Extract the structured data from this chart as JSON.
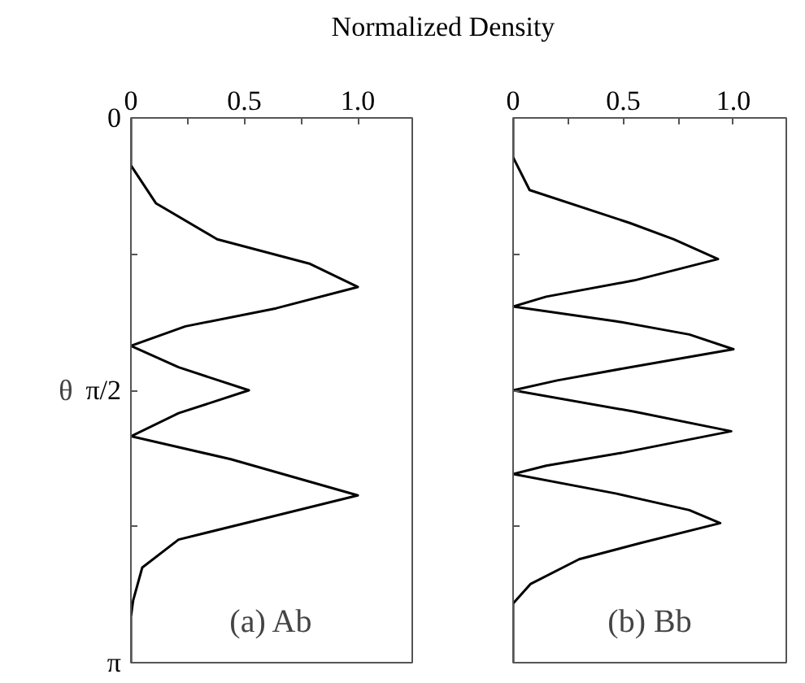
{
  "chart_data": [
    {
      "type": "line",
      "title": "Normalized Density",
      "ylabel": "θ",
      "annotations": [
        "(a) Ab"
      ],
      "grid": false,
      "xlim": [
        0,
        1.24
      ],
      "ylim": [
        3.1416,
        0
      ],
      "xticks": [
        0,
        {
          "value": 0.25,
          "label": null
        },
        0.5,
        {
          "value": 0.75,
          "label": null
        },
        {
          "value": 1,
          "label": "1.0"
        }
      ],
      "yticks": [
        0,
        {
          "value": 0.785,
          "label": null
        },
        {
          "value": 1.571,
          "label": "π/2"
        },
        {
          "value": 2.356,
          "label": null
        },
        {
          "value": 3.1416,
          "label": "π"
        }
      ],
      "series": [
        {
          "color": "#000000",
          "x": [
            0,
            0,
            0.11,
            0.38,
            0.79,
            1.0,
            0.64,
            0.24,
            0.0,
            0.21,
            0.52,
            0.21,
            0.0,
            0.44,
            1.0,
            0.59,
            0.21,
            0.05,
            0.01,
            0,
            0
          ],
          "values": [
            0,
            0.274,
            0.492,
            0.7,
            0.842,
            0.975,
            1.098,
            1.202,
            1.315,
            1.438,
            1.571,
            1.703,
            1.836,
            1.968,
            2.177,
            2.309,
            2.432,
            2.593,
            2.782,
            2.877,
            3.1416
          ]
        }
      ]
    },
    {
      "type": "line",
      "annotations": [
        "(b) Bb"
      ],
      "grid": false,
      "tick_labels": "x",
      "xlim": [
        0,
        1.24
      ],
      "ylim": [
        3.1416,
        0
      ],
      "xticks": [
        0,
        {
          "value": 0.25,
          "label": null
        },
        0.5,
        {
          "value": 0.75,
          "label": null
        },
        {
          "value": 1,
          "label": "1.0"
        }
      ],
      "yticks": [
        0,
        {
          "value": 0.785,
          "label": null
        },
        {
          "value": 1.571,
          "label": null
        },
        {
          "value": 2.356,
          "label": null
        },
        {
          "value": 3.1416,
          "label": null
        }
      ],
      "series": [
        {
          "color": "#000000",
          "x": [
            0,
            0,
            0.075,
            0.53,
            0.73,
            0.93,
            0.55,
            0.15,
            0.0,
            0.47,
            0.8,
            1.0,
            0.53,
            0.2,
            0.0,
            0.55,
            0.99,
            0.5,
            0.15,
            0.0,
            0.47,
            0.8,
            0.94,
            0.58,
            0.3,
            0.08,
            0,
            0
          ],
          "values": [
            0,
            0.227,
            0.416,
            0.606,
            0.7,
            0.814,
            0.937,
            1.031,
            1.088,
            1.173,
            1.249,
            1.334,
            1.438,
            1.514,
            1.571,
            1.694,
            1.807,
            1.93,
            2.006,
            2.054,
            2.167,
            2.262,
            2.337,
            2.451,
            2.545,
            2.687,
            2.801,
            3.1416
          ]
        }
      ]
    }
  ]
}
